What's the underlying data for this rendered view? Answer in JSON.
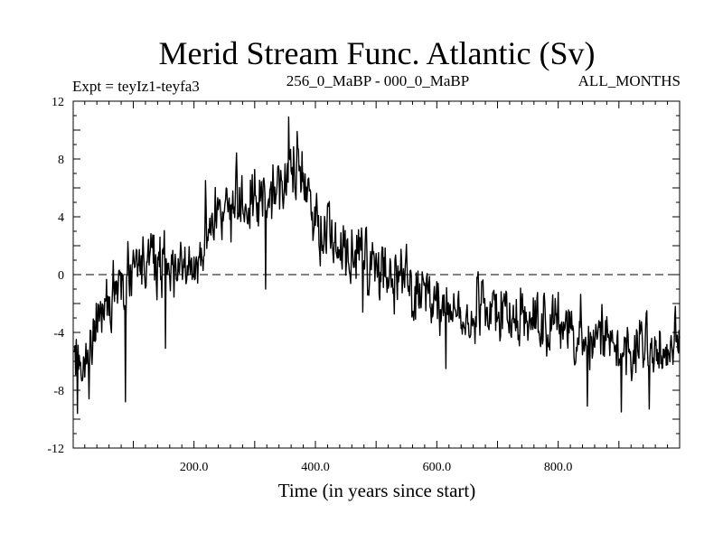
{
  "chart_data": {
    "type": "line",
    "title": "Merid Stream Func. Atlantic (Sv)",
    "subtitle_left": "Expt = teyIz1-teyfa3",
    "subtitle_center": "256_0_MaBP - 000_0_MaBP",
    "subtitle_right": "ALL_MONTHS",
    "xlabel": "Time (in years since start)",
    "ylabel": "",
    "xlim": [
      1,
      1000
    ],
    "ylim": [
      -12,
      12
    ],
    "x_ticks": [
      200,
      400,
      600,
      800
    ],
    "x_tick_labels": [
      "200.0",
      "400.0",
      "600.0",
      "800.0"
    ],
    "y_ticks": [
      -12,
      -8,
      -4,
      0,
      4,
      8,
      12
    ],
    "y_tick_labels": [
      "-12",
      "-8",
      "-4",
      "0",
      "4",
      "8",
      "12"
    ],
    "reference_line_y": 0,
    "series": [
      {
        "name": "Merid Stream Func. Atlantic",
        "trend": {
          "x": [
            1,
            15,
            30,
            40,
            60,
            80,
            100,
            120,
            150,
            180,
            200,
            220,
            250,
            280,
            300,
            320,
            350,
            370,
            390,
            410,
            450,
            500,
            550,
            600,
            650,
            700,
            750,
            800,
            850,
            900,
            950,
            1000
          ],
          "y": [
            -6.2,
            -6.5,
            -5.5,
            -3.5,
            -2.0,
            -1.5,
            0.5,
            1.2,
            0.8,
            0.3,
            0.8,
            3.5,
            4.5,
            5.0,
            5.2,
            5.6,
            6.8,
            6.9,
            5.5,
            3.5,
            1.2,
            0.5,
            -1.0,
            -2.0,
            -2.2,
            -2.7,
            -3.2,
            -3.8,
            -4.5,
            -4.7,
            -5.4,
            -4.8
          ]
        },
        "noise_amplitude_sv": 1.5,
        "samples": 1000,
        "extremes": [
          {
            "x": 8,
            "y": -9.6
          },
          {
            "x": 87,
            "y": -8.8
          },
          {
            "x": 153,
            "y": -5.1
          },
          {
            "x": 219,
            "y": 6.5
          },
          {
            "x": 318,
            "y": -1.0
          },
          {
            "x": 356,
            "y": 10.9
          },
          {
            "x": 370,
            "y": 9.9
          },
          {
            "x": 478,
            "y": -2.6
          },
          {
            "x": 615,
            "y": -6.5
          },
          {
            "x": 848,
            "y": -9.1
          },
          {
            "x": 904,
            "y": -9.5
          },
          {
            "x": 950,
            "y": -9.3
          },
          {
            "x": 993,
            "y": -2.2
          }
        ]
      }
    ]
  }
}
